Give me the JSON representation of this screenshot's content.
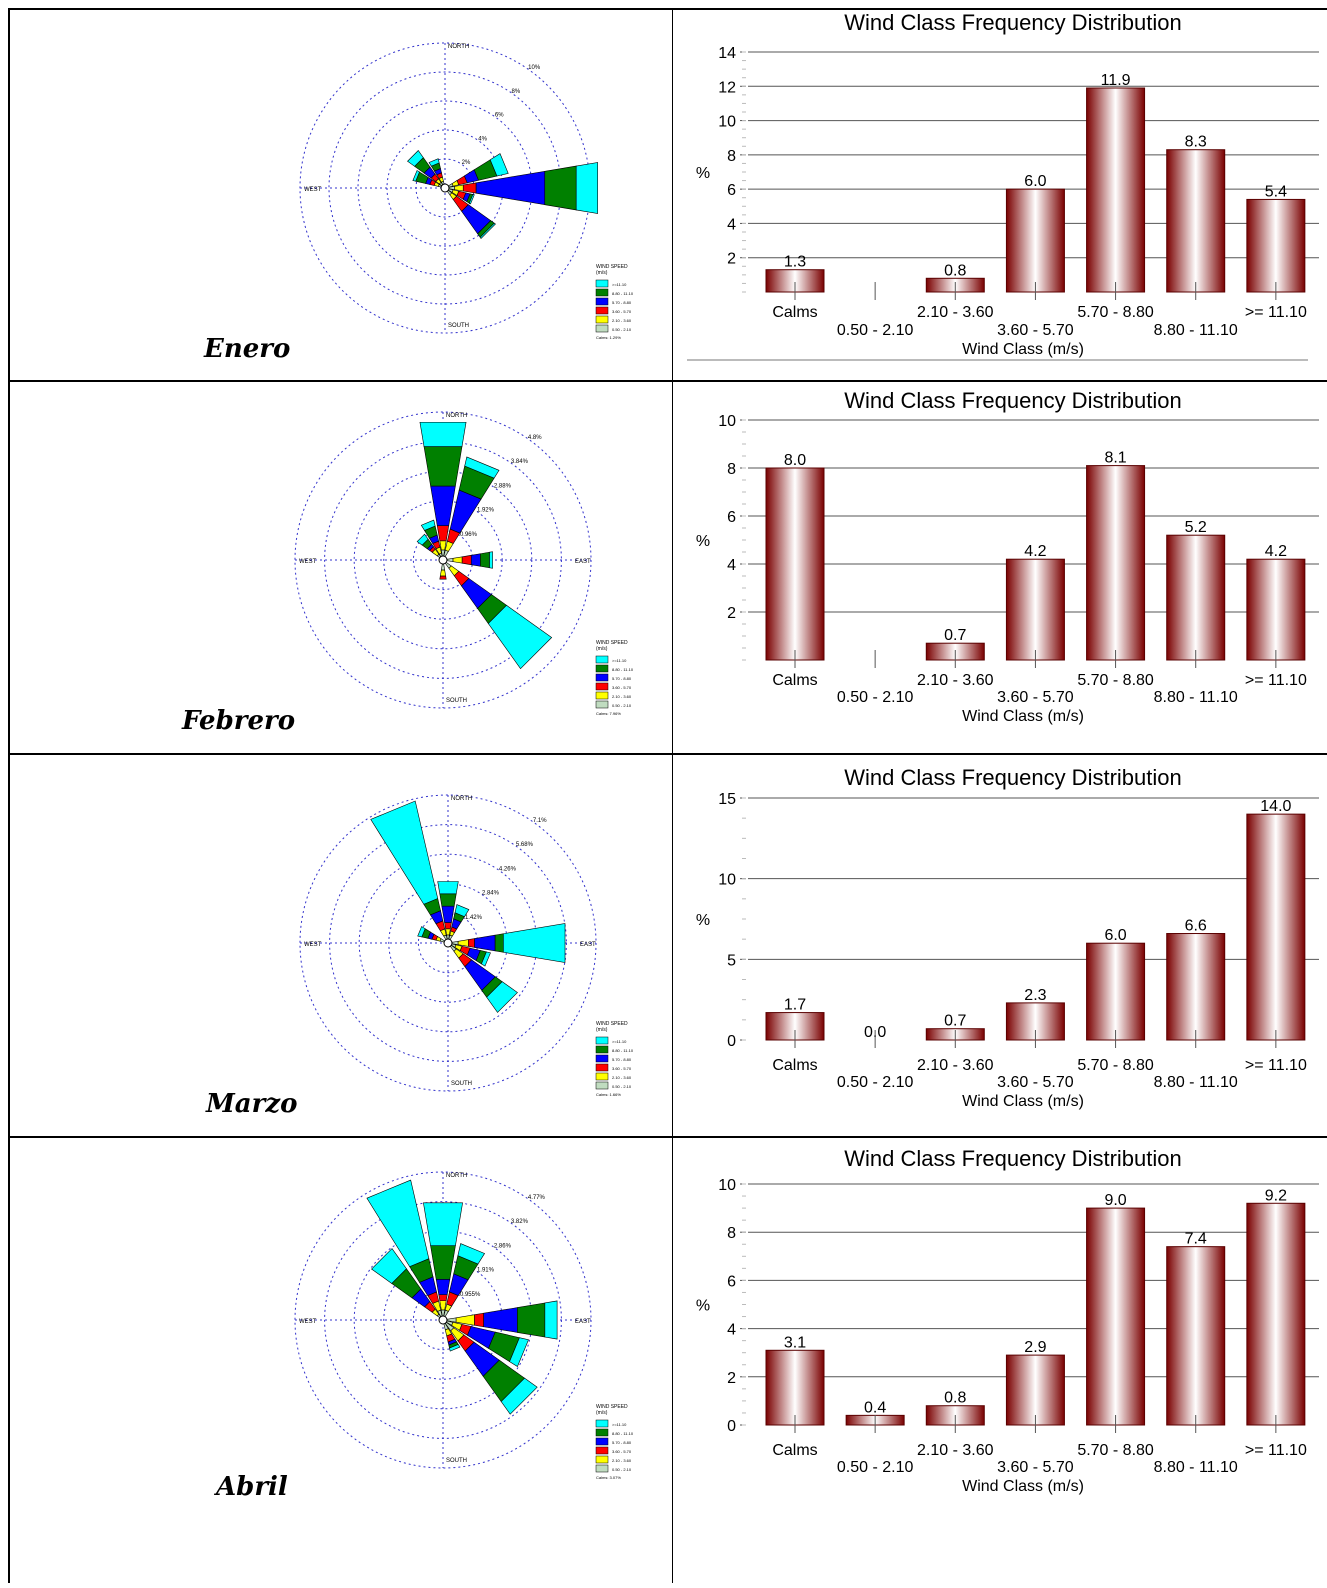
{
  "colors": {
    "bar_dark": "#7a0000",
    "bar_light": "#ffffff",
    "grid_line": "#555555",
    "rose_ring": "#3333cc",
    "speed_colors": [
      "#00ffff",
      "#008000",
      "#0000ff",
      "#ff0000",
      "#ffff00",
      "#c0dcc0"
    ]
  },
  "wind_rose_legend": {
    "title": "WIND SPEED",
    "unit": "(m/s)",
    "classes": [
      ">=11.10",
      "8.80 - 11.10",
      "5.70 - 8.80",
      "3.60 - 5.70",
      "2.10 - 3.60",
      "0.50 - 2.10"
    ]
  },
  "directions": {
    "north": "NORTH",
    "south": "SOUTH",
    "east": "EAST",
    "west": "WEST"
  },
  "months": [
    {
      "name": "Enero",
      "rose": {
        "ring_labels": [
          "2%",
          "4%",
          "6%",
          "8%",
          "10%"
        ],
        "calms_label": "Calms: 1.29%",
        "petals": [
          {
            "dir": "ENE",
            "segs": [
              0.3,
              0.4,
              0.6,
              0.8,
              1.3,
              0.8
            ]
          },
          {
            "dir": "E",
            "segs": [
              0.4,
              0.6,
              0.9,
              4.8,
              2.2,
              1.5
            ]
          },
          {
            "dir": "ESE",
            "segs": [
              0.3,
              0.4,
              0.5,
              0.3,
              0.2,
              0.1
            ]
          },
          {
            "dir": "SE",
            "segs": [
              0.3,
              0.4,
              1.0,
              1.9,
              0.3,
              0.1
            ]
          },
          {
            "dir": "NW",
            "segs": [
              0.2,
              0.3,
              0.4,
              0.6,
              0.8,
              0.6
            ]
          },
          {
            "dir": "WNW",
            "segs": [
              0.2,
              0.3,
              0.3,
              0.3,
              0.7,
              0.2
            ]
          },
          {
            "dir": "NNW",
            "segs": [
              0.2,
              0.3,
              0.3,
              0.3,
              0.4,
              0.3
            ]
          }
        ]
      },
      "chart_data": {
        "type": "bar",
        "title": "Wind Class Frequency Distribution",
        "xlabel": "Wind Class (m/s)",
        "ylabel": "%",
        "categories": [
          "Calms",
          "0.50 - 2.10",
          "2.10 - 3.60",
          "3.60 - 5.70",
          "5.70 - 8.80",
          "8.80 - 11.10",
          ">= 11.10"
        ],
        "values": [
          1.3,
          null,
          0.8,
          6.0,
          11.9,
          8.3,
          5.4
        ],
        "value_labels": [
          "1.3",
          "",
          "0.8",
          "6.0",
          "11.9",
          "8.3",
          "5.4"
        ],
        "ylim": [
          0,
          14
        ],
        "yticks": [
          2,
          4,
          6,
          8,
          10,
          12,
          14
        ],
        "grid": true
      }
    },
    {
      "name": "Febrero",
      "rose": {
        "ring_labels": [
          "0.96%",
          "1.92%",
          "2.88%",
          "3.84%",
          "4.8%"
        ],
        "calms_label": "Calms: 7.96%",
        "petals": [
          {
            "dir": "N",
            "segs": [
              0.2,
              0.3,
              0.5,
              1.3,
              1.3,
              0.8
            ]
          },
          {
            "dir": "NNE",
            "segs": [
              0.2,
              0.3,
              0.4,
              1.3,
              0.8,
              0.3
            ]
          },
          {
            "dir": "E",
            "segs": [
              0.2,
              0.3,
              0.3,
              0.3,
              0.3,
              0.1
            ]
          },
          {
            "dir": "SE",
            "segs": [
              0.2,
              0.3,
              0.4,
              0.9,
              0.6,
              1.8
            ]
          },
          {
            "dir": "NNW",
            "segs": [
              0.1,
              0.2,
              0.2,
              0.2,
              0.3,
              0.2
            ]
          },
          {
            "dir": "S",
            "segs": [
              0.2,
              0.2,
              0.1,
              0.0,
              0.0,
              0.0
            ]
          },
          {
            "dir": "NW",
            "segs": [
              0.1,
              0.2,
              0.1,
              0.1,
              0.2,
              0.2
            ]
          }
        ]
      },
      "chart_data": {
        "type": "bar",
        "title": "Wind Class Frequency Distribution",
        "xlabel": "Wind Class (m/s)",
        "ylabel": "%",
        "categories": [
          "Calms",
          "0.50 - 2.10",
          "2.10 - 3.60",
          "3.60 - 5.70",
          "5.70 - 8.80",
          "8.80 - 11.10",
          ">= 11.10"
        ],
        "values": [
          8.0,
          null,
          0.7,
          4.2,
          8.1,
          5.2,
          4.2
        ],
        "value_labels": [
          "8.0",
          "",
          "0.7",
          "4.2",
          "8.1",
          "5.2",
          "4.2"
        ],
        "ylim": [
          0,
          10
        ],
        "yticks": [
          2,
          4,
          6,
          8,
          10
        ],
        "grid": true
      }
    },
    {
      "name": "Marzo",
      "rose": {
        "ring_labels": [
          "1.42%",
          "2.84%",
          "4.26%",
          "5.68%",
          "7.1%"
        ],
        "calms_label": "Calms: 1.66%",
        "petals": [
          {
            "dir": "NNW",
            "segs": [
              0.2,
              0.3,
              0.4,
              0.5,
              0.6,
              4.8
            ]
          },
          {
            "dir": "N",
            "segs": [
              0.2,
              0.3,
              0.3,
              0.8,
              0.6,
              0.6
            ]
          },
          {
            "dir": "NNE",
            "segs": [
              0.2,
              0.2,
              0.2,
              0.4,
              0.3,
              0.4
            ]
          },
          {
            "dir": "E",
            "segs": [
              0.3,
              0.5,
              0.3,
              1.0,
              0.4,
              3.0
            ]
          },
          {
            "dir": "SE",
            "segs": [
              0.3,
              0.4,
              0.5,
              1.4,
              0.4,
              0.9
            ]
          },
          {
            "dir": "ESE",
            "segs": [
              0.2,
              0.3,
              0.4,
              0.5,
              0.3,
              0.2
            ]
          },
          {
            "dir": "WNW",
            "segs": [
              0.2,
              0.2,
              0.2,
              0.2,
              0.3,
              0.2
            ]
          }
        ]
      },
      "chart_data": {
        "type": "bar",
        "title": "Wind Class Frequency Distribution",
        "xlabel": "Wind Class (m/s)",
        "ylabel": "%",
        "categories": [
          "Calms",
          "0.50 - 2.10",
          "2.10 - 3.60",
          "3.60 - 5.70",
          "5.70 - 8.80",
          "8.80 - 11.10",
          ">= 11.10"
        ],
        "values": [
          1.7,
          0.0,
          0.7,
          2.3,
          6.0,
          6.6,
          14.0
        ],
        "value_labels": [
          "1.7",
          "0.0",
          "0.7",
          "2.3",
          "6.0",
          "6.6",
          "14.0"
        ],
        "ylim": [
          0,
          15
        ],
        "yticks": [
          0,
          5,
          10,
          15
        ],
        "grid": true
      }
    },
    {
      "name": "Abril",
      "rose": {
        "ring_labels": [
          "0.955%",
          "1.91%",
          "2.86%",
          "3.82%",
          "4.77%"
        ],
        "calms_label": "Calms: 3.07%",
        "petals": [
          {
            "dir": "NNW",
            "segs": [
              0.2,
              0.3,
              0.3,
              0.5,
              0.6,
              2.6
            ]
          },
          {
            "dir": "N",
            "segs": [
              0.2,
              0.3,
              0.2,
              0.5,
              1.1,
              1.4
            ]
          },
          {
            "dir": "NNE",
            "segs": [
              0.2,
              0.2,
              0.4,
              0.6,
              0.6,
              0.4
            ]
          },
          {
            "dir": "NW",
            "segs": [
              0.1,
              0.2,
              0.3,
              0.5,
              0.8,
              0.8
            ]
          },
          {
            "dir": "E",
            "segs": [
              0.3,
              0.6,
              0.3,
              1.1,
              0.9,
              0.4
            ]
          },
          {
            "dir": "ESE",
            "segs": [
              0.2,
              0.3,
              0.3,
              0.8,
              0.8,
              0.3
            ]
          },
          {
            "dir": "SE",
            "segs": [
              0.3,
              0.4,
              0.4,
              1.0,
              1.0,
              0.5
            ]
          },
          {
            "dir": "SSE",
            "segs": [
              0.2,
              0.2,
              0.2,
              0.1,
              0.1,
              0.1
            ]
          }
        ]
      },
      "chart_data": {
        "type": "bar",
        "title": "Wind Class Frequency Distribution",
        "xlabel": "Wind Class (m/s)",
        "ylabel": "%",
        "categories": [
          "Calms",
          "0.50 - 2.10",
          "2.10 - 3.60",
          "3.60 - 5.70",
          "5.70 - 8.80",
          "8.80 - 11.10",
          ">= 11.10"
        ],
        "values": [
          3.1,
          0.4,
          0.8,
          2.9,
          9.0,
          7.4,
          9.2
        ],
        "value_labels": [
          "3.1",
          "0.4",
          "0.8",
          "2.9",
          "9.0",
          "7.4",
          "9.2"
        ],
        "ylim": [
          0,
          10
        ],
        "yticks": [
          0,
          2,
          4,
          6,
          8,
          10
        ],
        "grid": true
      }
    }
  ]
}
